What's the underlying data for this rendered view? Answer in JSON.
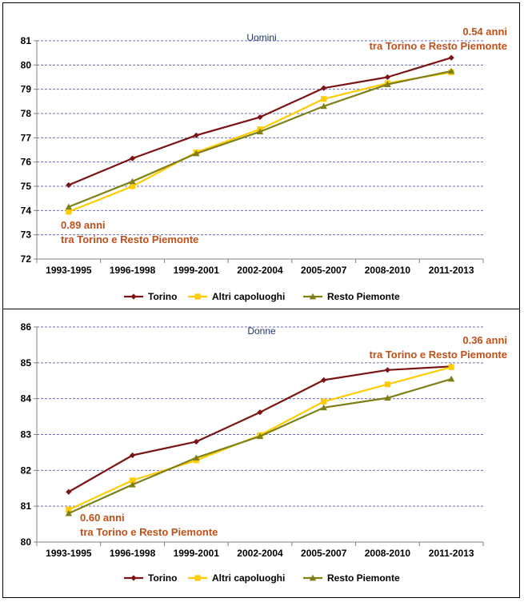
{
  "colors": {
    "torino": "#7b1414",
    "altri": "#ffcc00",
    "resto": "#7f7f17",
    "grid": "#6b6bb3",
    "annotation": "#c0501a"
  },
  "chart_data": [
    {
      "type": "line",
      "title": "Uomini",
      "categories": [
        "1993-1995",
        "1996-1998",
        "1999-2001",
        "2002-2004",
        "2005-2007",
        "2008-2010",
        "2011-2013"
      ],
      "ylim": [
        72,
        81
      ],
      "yticks": [
        "72",
        "73",
        "74",
        "75",
        "76",
        "77",
        "78",
        "79",
        "80",
        "81"
      ],
      "series": [
        {
          "name": "Torino",
          "values": [
            75.05,
            76.15,
            77.1,
            77.85,
            79.05,
            79.5,
            80.3
          ]
        },
        {
          "name": "Altri capoluoghi",
          "values": [
            73.95,
            75.0,
            76.4,
            77.35,
            78.6,
            79.25,
            79.7
          ]
        },
        {
          "name": "Resto Piemonte",
          "values": [
            74.15,
            75.2,
            76.35,
            77.25,
            78.3,
            79.2,
            79.75
          ]
        }
      ],
      "annotations": [
        {
          "lines": [
            "0.54 anni",
            "tra Torino e Resto Piemonte"
          ]
        },
        {
          "lines": [
            "0.89 anni",
            "tra Torino  e Resto Piemonte"
          ]
        }
      ],
      "grid": true,
      "legend": "bottom"
    },
    {
      "type": "line",
      "title": "Donne",
      "categories": [
        "1993-1995",
        "1996-1998",
        "1999-2001",
        "2002-2004",
        "2005-2007",
        "2008-2010",
        "2011-2013"
      ],
      "ylim": [
        80,
        86
      ],
      "yticks": [
        "80",
        "81",
        "82",
        "83",
        "84",
        "85",
        "86"
      ],
      "series": [
        {
          "name": "Torino",
          "values": [
            81.4,
            82.42,
            82.8,
            83.62,
            84.52,
            84.8,
            84.9
          ]
        },
        {
          "name": "Altri capoluoghi",
          "values": [
            80.9,
            81.72,
            82.28,
            82.98,
            83.92,
            84.4,
            84.88
          ]
        },
        {
          "name": "Resto Piemonte",
          "values": [
            80.8,
            81.6,
            82.35,
            82.95,
            83.75,
            84.02,
            84.55
          ]
        }
      ],
      "annotations": [
        {
          "lines": [
            "0.36 anni",
            "tra Torino e Resto Piemonte"
          ]
        },
        {
          "lines": [
            "0.60 anni",
            "tra Torino  e Resto Piemonte"
          ]
        }
      ],
      "grid": true,
      "legend": "bottom"
    }
  ]
}
